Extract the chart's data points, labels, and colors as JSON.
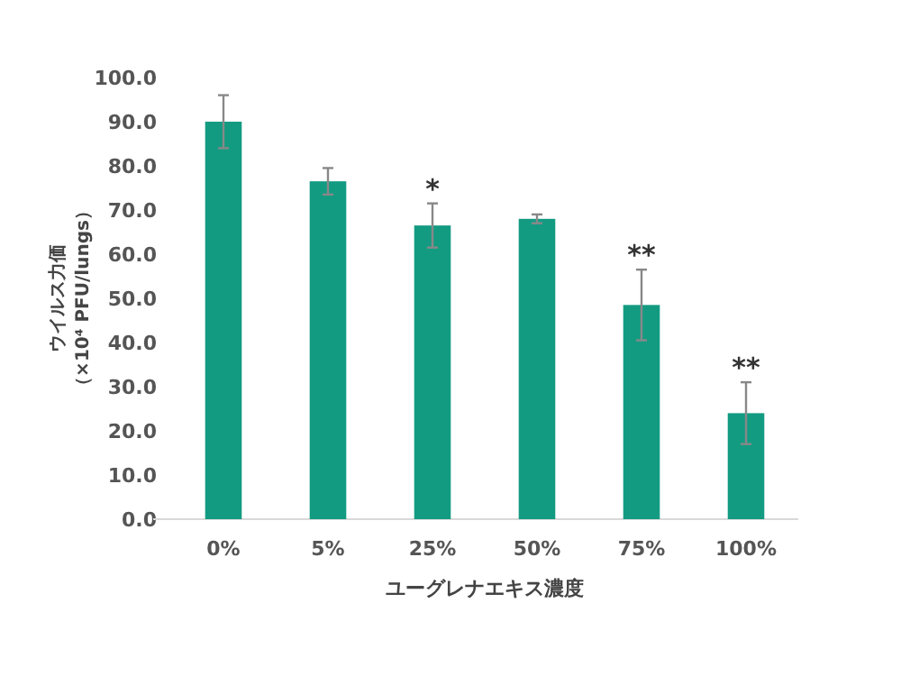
{
  "chart_data": {
    "type": "bar",
    "categories": [
      "0%",
      "5%",
      "25%",
      "50%",
      "75%",
      "100%"
    ],
    "values": [
      90.0,
      76.5,
      66.5,
      68.0,
      48.5,
      24.0
    ],
    "errors": [
      6,
      3,
      5,
      1,
      8,
      7
    ],
    "color": "#139b82",
    "ylim": [
      0,
      100
    ],
    "yticks": [
      {
        "value": 0,
        "label": "0.0"
      },
      {
        "value": 10,
        "label": "10.0"
      },
      {
        "value": 20,
        "label": "20.0"
      },
      {
        "value": 30,
        "label": "30.0"
      },
      {
        "value": 40,
        "label": "40.0"
      },
      {
        "value": 50,
        "label": "50.0"
      },
      {
        "value": 60,
        "label": "60.0"
      },
      {
        "value": 70,
        "label": "70.0"
      },
      {
        "value": 80,
        "label": "80.0"
      },
      {
        "value": 90,
        "label": "90.0"
      },
      {
        "value": 100,
        "label": "100.0"
      }
    ],
    "xlabel": "ユーグレナエキス濃度",
    "ylabel": [
      "ウイルス力価",
      "（×10⁴ PFU/lungs）"
    ],
    "annotations": [
      {
        "text": "*",
        "x": "25%",
        "y": 71.5
      },
      {
        "text": "**",
        "x": "75%",
        "y": 56.5
      },
      {
        "text": "**",
        "x": "100%",
        "y": 31
      }
    ]
  }
}
